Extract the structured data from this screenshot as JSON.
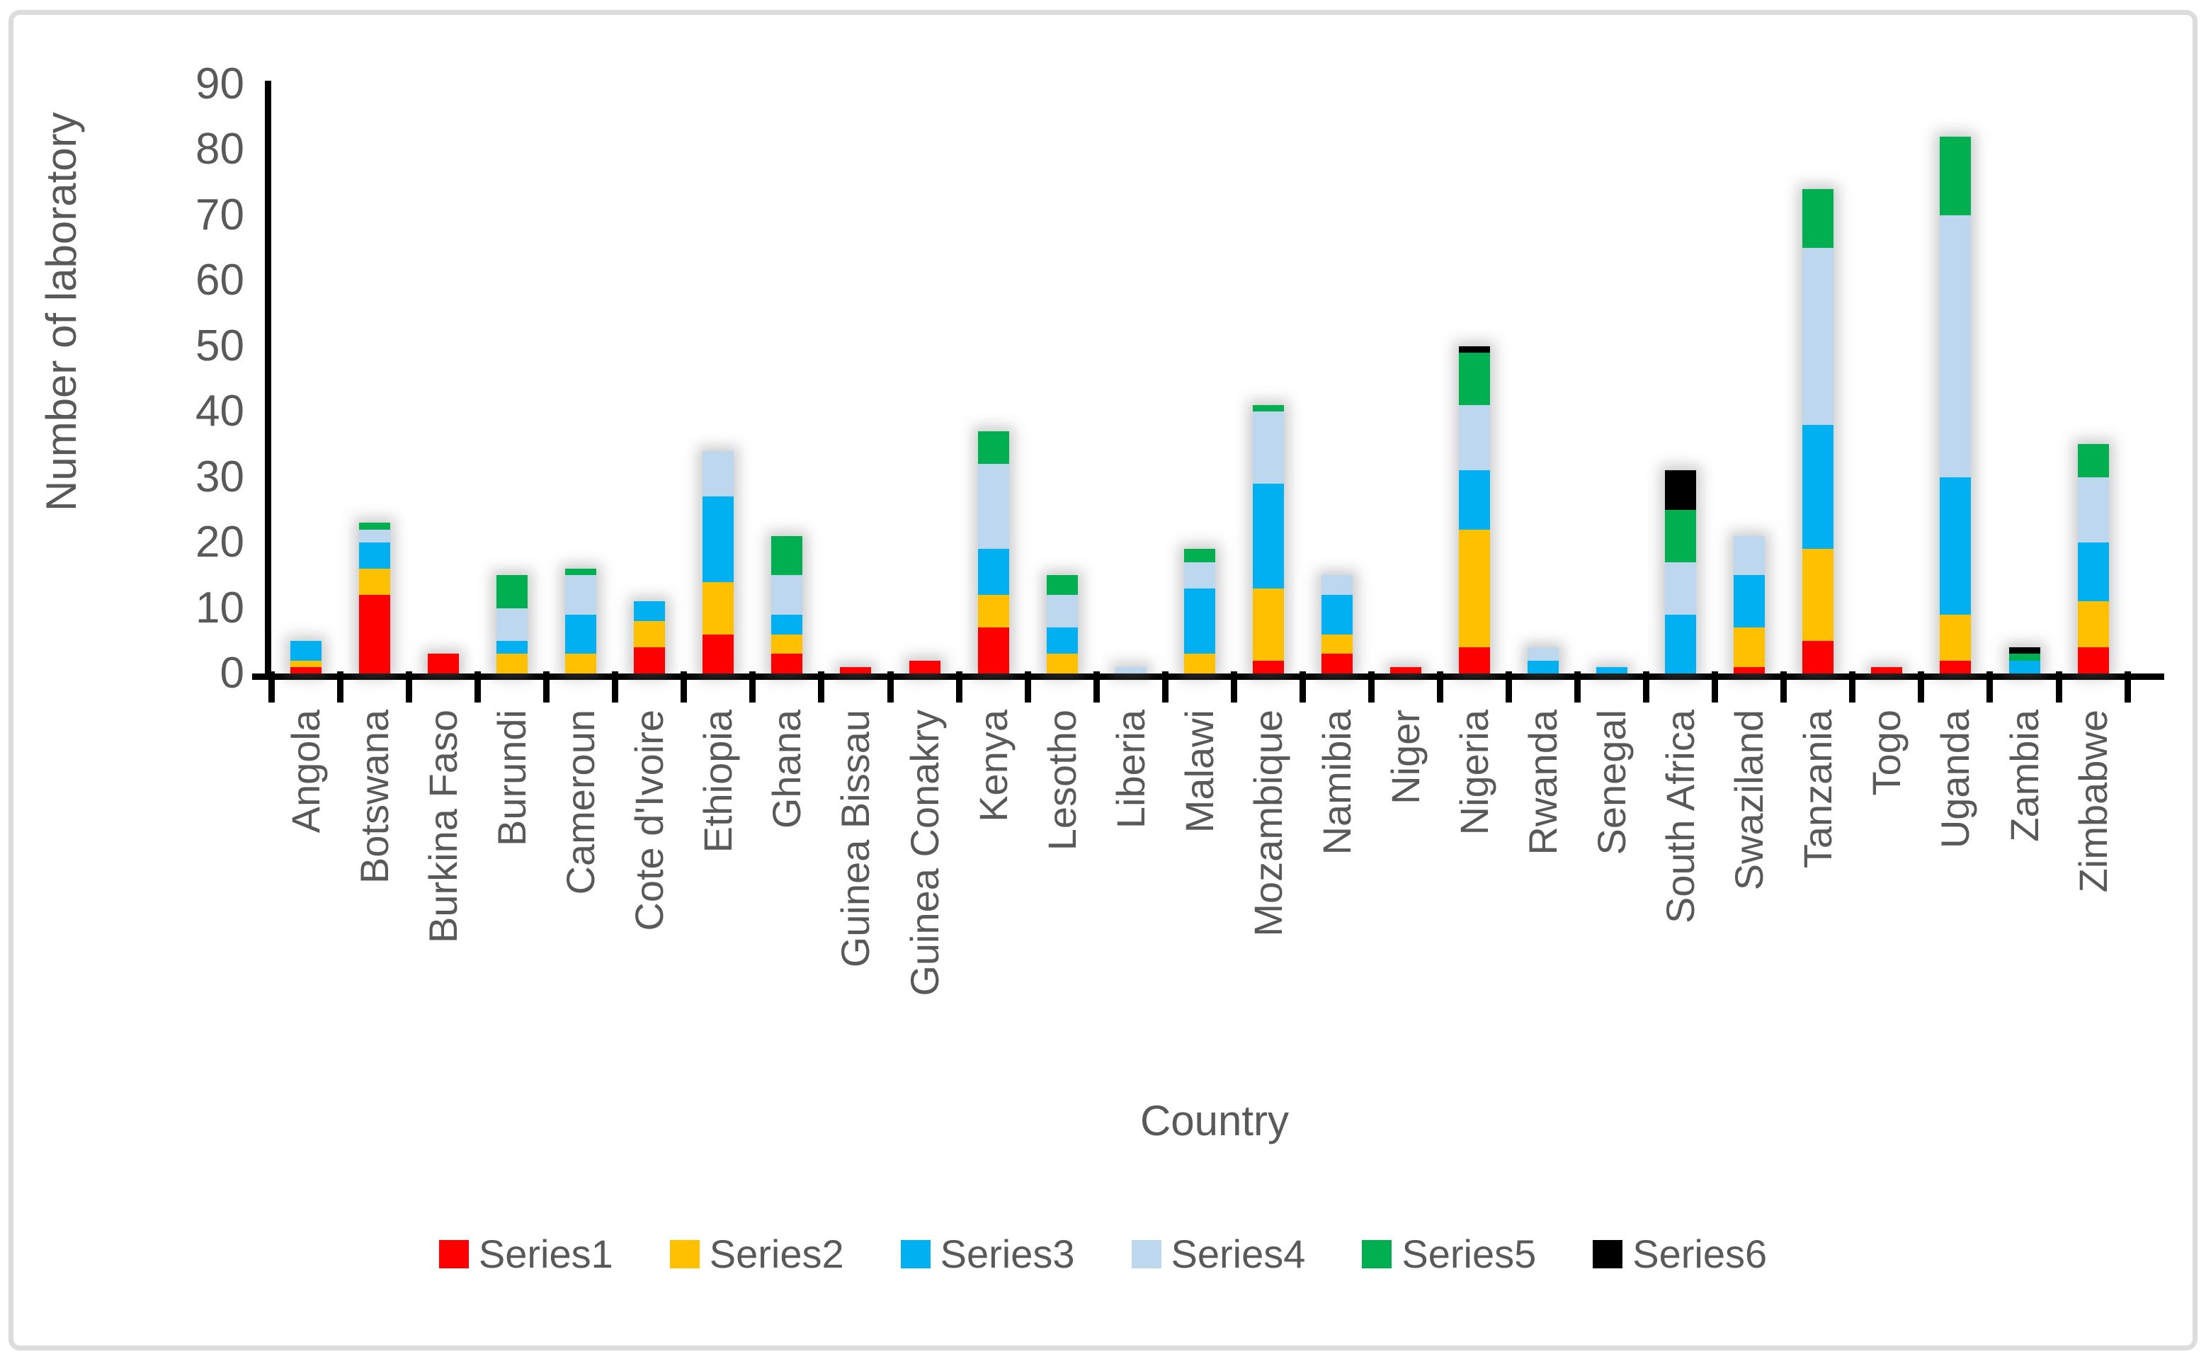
{
  "chart_data": {
    "type": "bar",
    "stacked": true,
    "title": "",
    "xlabel": "Country",
    "ylabel": "Number of laboratory",
    "ylim": [
      0,
      90
    ],
    "y_ticks": [
      0,
      10,
      20,
      30,
      40,
      50,
      60,
      70,
      80,
      90
    ],
    "grid": false,
    "legend_position": "bottom",
    "categories": [
      "Angola",
      "Botswana",
      "Burkina Faso",
      "Burundi",
      "Cameroun",
      "Cote d'Ivoire",
      "Ethiopia",
      "Ghana",
      "Guinea Bissau",
      "Guinea Conakry",
      "Kenya",
      "Lesotho",
      "Liberia",
      "Malawi",
      "Mozambique",
      "Namibia",
      "Niger",
      "Nigeria",
      "Rwanda",
      "Senegal",
      "South Africa",
      "Swaziland",
      "Tanzania",
      "Togo",
      "Uganda",
      "Zambia",
      "Zimbabwe"
    ],
    "series": [
      {
        "name": "Series1",
        "color": "#FF0000",
        "values": [
          1,
          12,
          3,
          0,
          0,
          4,
          6,
          3,
          1,
          2,
          7,
          0,
          0,
          0,
          2,
          3,
          1,
          4,
          0,
          0,
          0,
          1,
          5,
          1,
          2,
          0,
          4
        ]
      },
      {
        "name": "Series2",
        "color": "#FFC000",
        "values": [
          1,
          4,
          0,
          3,
          3,
          4,
          8,
          3,
          0,
          0,
          5,
          3,
          0,
          3,
          11,
          3,
          0,
          18,
          0,
          0,
          0,
          6,
          14,
          0,
          7,
          0,
          7
        ]
      },
      {
        "name": "Series3",
        "color": "#00B0F0",
        "values": [
          3,
          4,
          0,
          2,
          6,
          3,
          13,
          3,
          0,
          0,
          7,
          4,
          0,
          10,
          16,
          6,
          0,
          9,
          2,
          1,
          9,
          8,
          19,
          0,
          21,
          2,
          9
        ]
      },
      {
        "name": "Series4",
        "color": "#BDD7EE",
        "values": [
          0,
          2,
          0,
          5,
          6,
          0,
          7,
          6,
          0,
          0,
          13,
          5,
          1,
          4,
          11,
          3,
          0,
          10,
          2,
          0,
          8,
          6,
          27,
          0,
          40,
          0,
          10
        ]
      },
      {
        "name": "Series5",
        "color": "#00B050",
        "values": [
          0,
          1,
          0,
          5,
          1,
          0,
          0,
          6,
          0,
          0,
          5,
          3,
          0,
          2,
          1,
          0,
          0,
          8,
          0,
          0,
          8,
          0,
          9,
          0,
          12,
          1,
          5
        ]
      },
      {
        "name": "Series6",
        "color": "#000000",
        "values": [
          0,
          0,
          0,
          0,
          0,
          0,
          0,
          0,
          0,
          0,
          0,
          0,
          0,
          0,
          0,
          0,
          0,
          1,
          0,
          0,
          6,
          0,
          0,
          0,
          0,
          1,
          0
        ]
      }
    ],
    "totals": [
      5,
      23,
      3,
      15,
      16,
      11,
      34,
      21,
      1,
      2,
      37,
      15,
      1,
      19,
      41,
      15,
      1,
      50,
      4,
      1,
      31,
      21,
      74,
      1,
      82,
      4,
      35
    ]
  },
  "layout_colors": {
    "axis": "#000000",
    "text": "#595959",
    "frame_border": "#DCDCDC",
    "background": "#FFFFFF"
  }
}
